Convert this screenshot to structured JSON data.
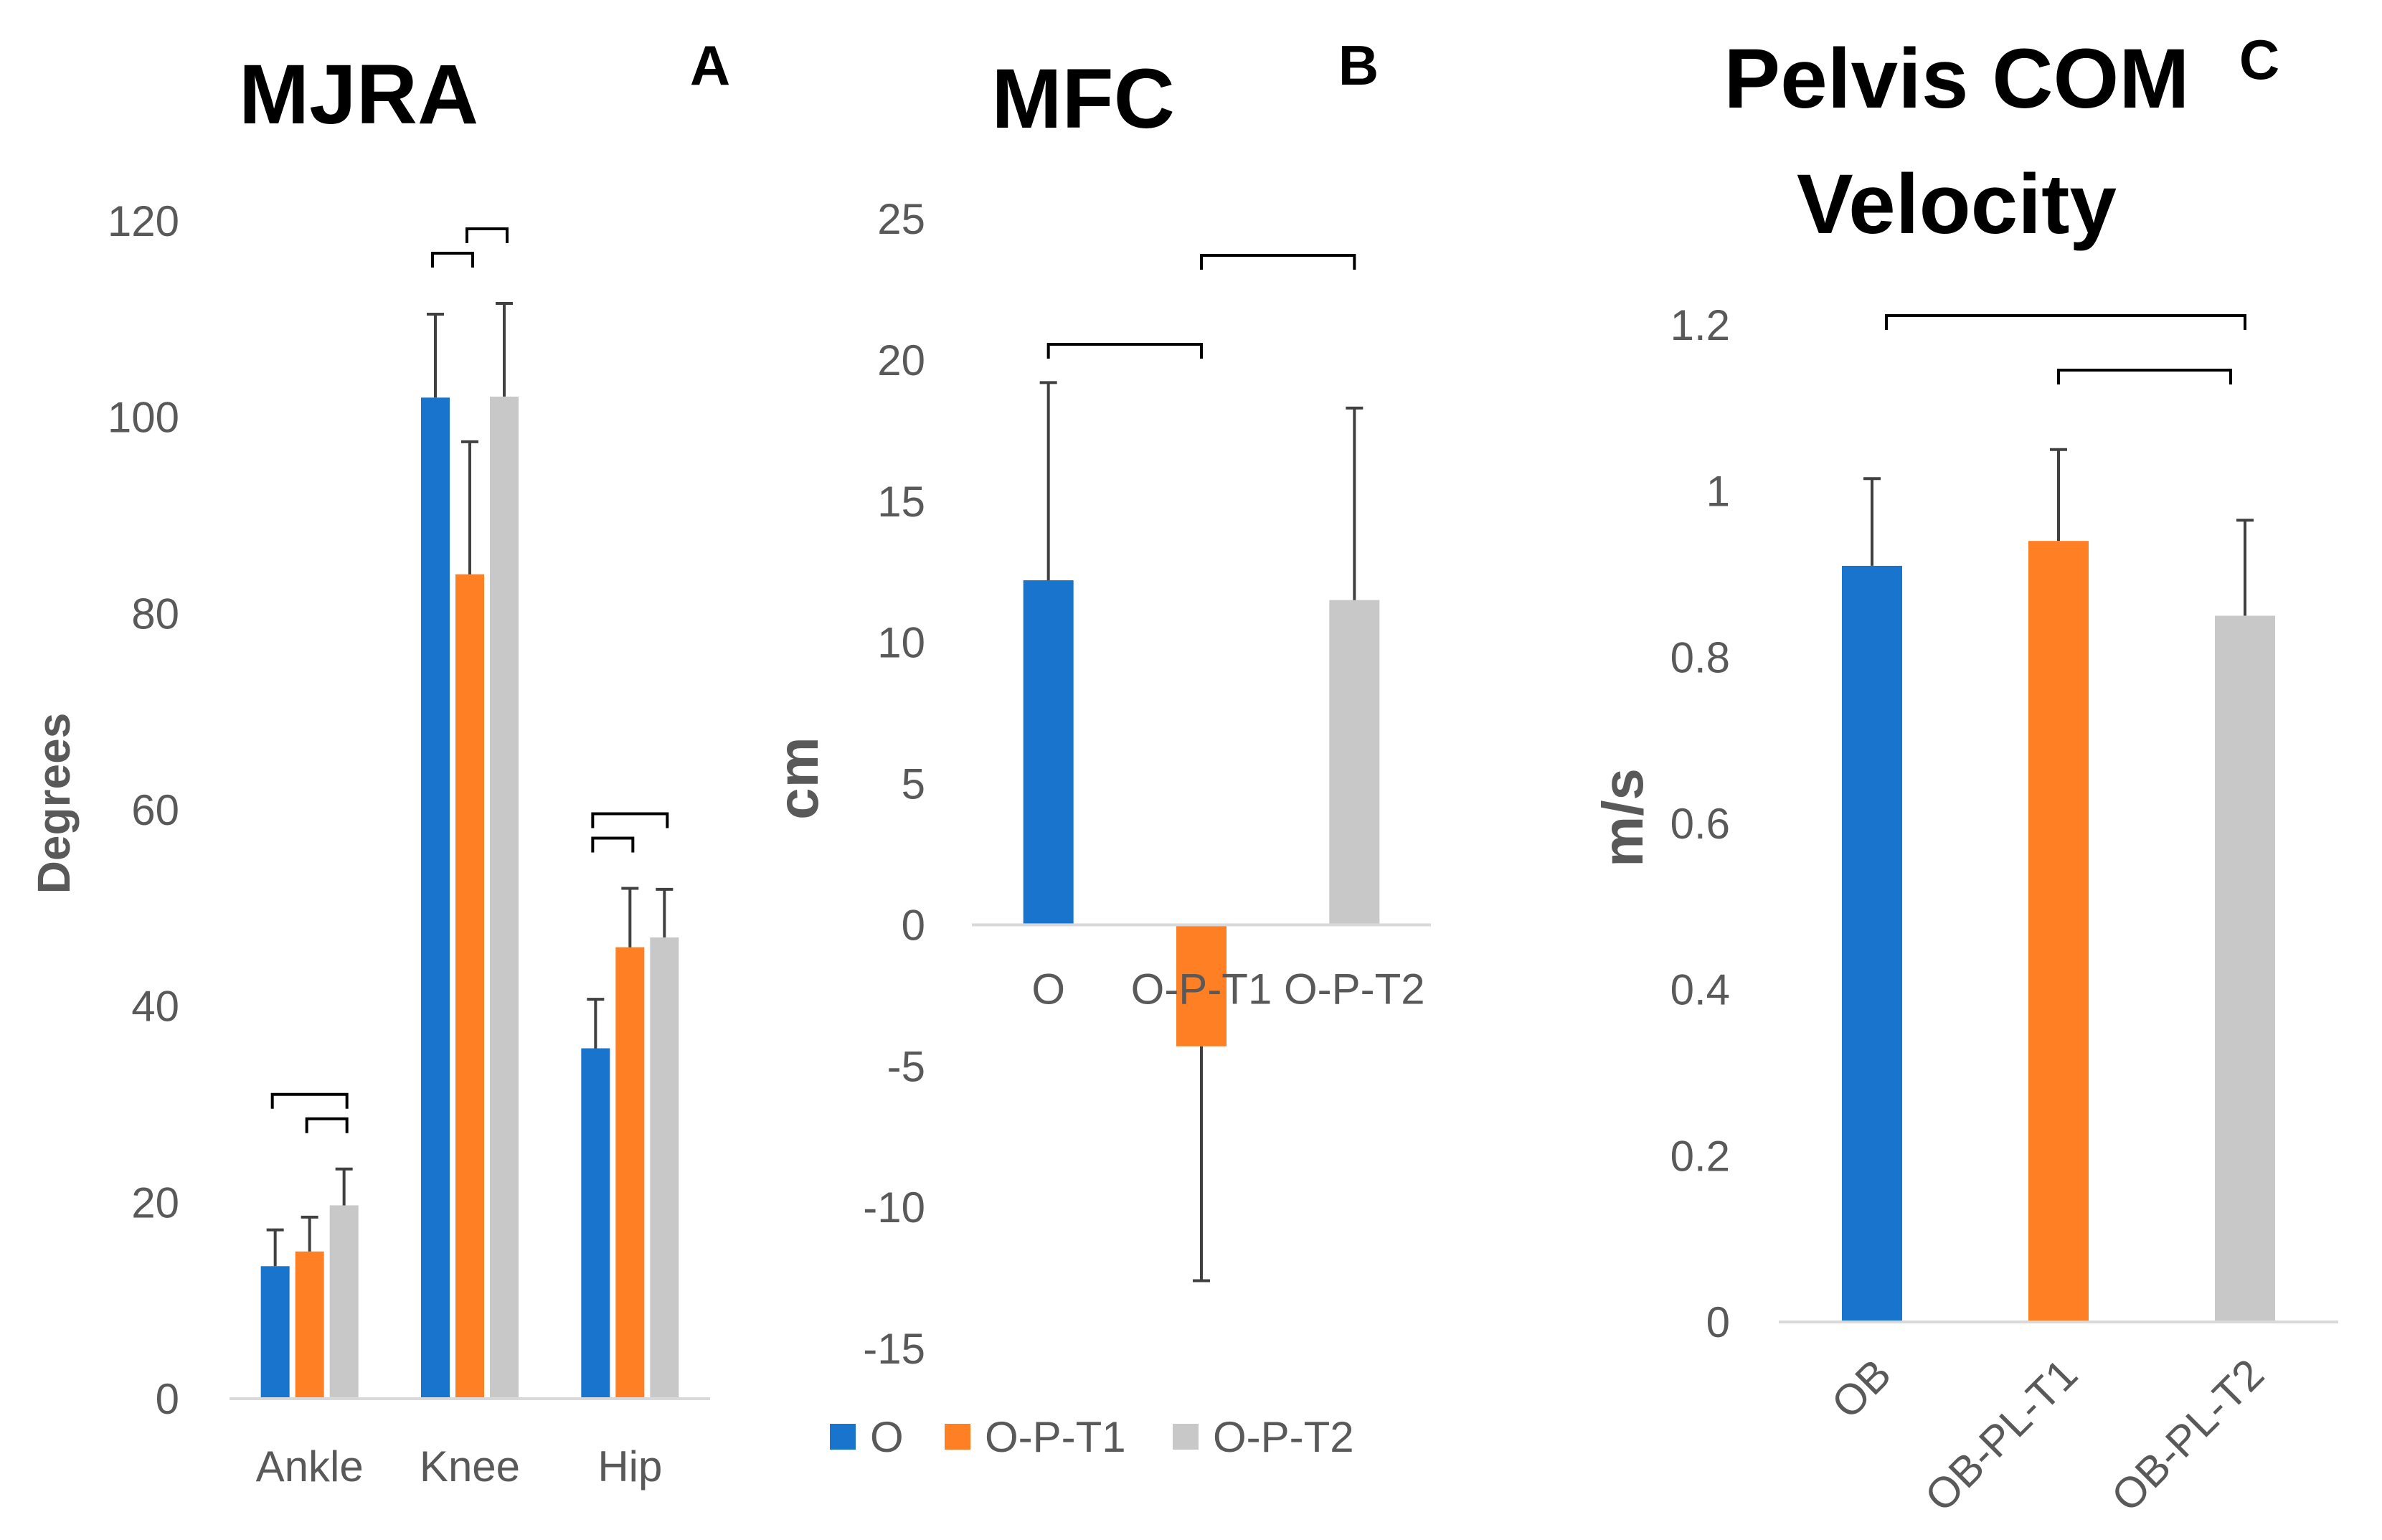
{
  "colors": {
    "O": "#1874CD",
    "O-P-T1": "#FF7F24",
    "O-P-T2": "#C8C8C8",
    "axis": "#D9D9D9",
    "error": "#404040",
    "bracket": "#000000"
  },
  "legend": [
    "O",
    "O-P-T1",
    "O-P-T2"
  ],
  "chart_data": [
    {
      "type": "bar",
      "panel": "A",
      "title": "MJRA",
      "ylabel": "Degrees",
      "ylim": [
        0,
        120
      ],
      "yticks": [
        "0",
        "20",
        "40",
        "60",
        "80",
        "100",
        "120"
      ],
      "categories": [
        "Ankle",
        "Knee",
        "Hip"
      ],
      "series": [
        {
          "name": "O",
          "values": [
            13.5,
            102,
            35.7
          ],
          "errors": [
            3.7,
            8.5,
            5.0
          ]
        },
        {
          "name": "O-P-T1",
          "values": [
            15,
            84,
            46
          ],
          "errors": [
            3.5,
            13.5,
            6.0
          ]
        },
        {
          "name": "O-P-T2",
          "values": [
            19.7,
            102.1,
            47
          ],
          "errors": [
            3.7,
            9.5,
            4.9
          ]
        }
      ],
      "significance": [
        {
          "category": "Ankle",
          "pairs": [
            [
              "O",
              "O-P-T2"
            ],
            [
              "O-P-T1",
              "O-P-T2"
            ]
          ]
        },
        {
          "category": "Knee",
          "pairs": [
            [
              "O",
              "O-P-T1"
            ],
            [
              "O-P-T1",
              "O-P-T2"
            ]
          ]
        },
        {
          "category": "Hip",
          "pairs": [
            [
              "O",
              "O-P-T1"
            ],
            [
              "O",
              "O-P-T2"
            ]
          ]
        }
      ]
    },
    {
      "type": "bar",
      "panel": "B",
      "title": "MFC",
      "ylabel": "cm",
      "ylim": [
        -15,
        25
      ],
      "yticks": [
        "-15",
        "-10",
        "-5",
        "0",
        "5",
        "10",
        "15",
        "20",
        "25"
      ],
      "categories": [
        "O",
        "O-P-T1",
        "O-P-T2"
      ],
      "values": [
        12.2,
        -4.3,
        11.5
      ],
      "errors": [
        7.0,
        8.3,
        6.8
      ],
      "significance": [
        [
          "O",
          "O-P-T1"
        ],
        [
          "O-P-T1",
          "O-P-T2"
        ]
      ]
    },
    {
      "type": "bar",
      "panel": "C",
      "title_lines": [
        "Pelvis COM",
        "Velocity"
      ],
      "ylabel": "m/s",
      "ylim": [
        0,
        1.2
      ],
      "yticks": [
        "0",
        "0.2",
        "0.4",
        "0.6",
        "0.8",
        "1",
        "1.2"
      ],
      "categories": [
        "OB",
        "OB-PL-T1",
        "OB-PL-T2"
      ],
      "values": [
        0.91,
        0.94,
        0.85
      ],
      "errors": [
        0.105,
        0.11,
        0.115
      ],
      "significance": [
        [
          "OB",
          "OB-PL-T2"
        ],
        [
          "OB-PL-T1",
          "OB-PL-T2"
        ]
      ]
    }
  ]
}
